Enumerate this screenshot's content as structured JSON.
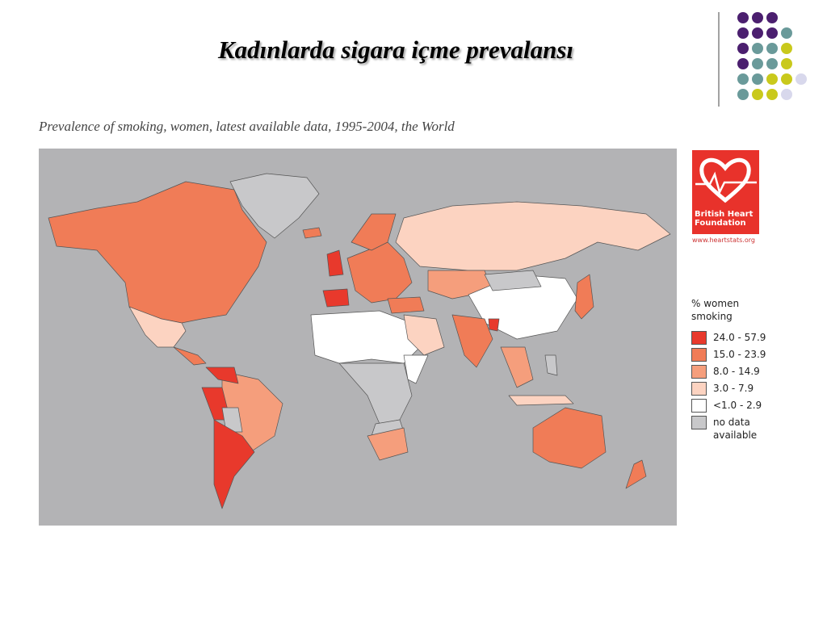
{
  "title": "Kadınlarda sigara içme prevalansı",
  "subtitle": "Prevalence of smoking, women, latest available data, 1995-2004, the World",
  "logo": {
    "name": "British Heart Foundation",
    "url": "www.heartstats.org"
  },
  "legend": {
    "title": "% women smoking",
    "items": [
      {
        "label": "24.0 - 57.9",
        "color": "#e8392c"
      },
      {
        "label": "15.0 - 23.9",
        "color": "#f07c57"
      },
      {
        "label": "8.0 - 14.9",
        "color": "#f59e7c"
      },
      {
        "label": "3.0 - 7.9",
        "color": "#fcd3c1"
      },
      {
        "label": "<1.0 - 2.9",
        "color": "#ffffff"
      },
      {
        "label": "no data available",
        "color": "#c8c8ca"
      }
    ]
  }
}
